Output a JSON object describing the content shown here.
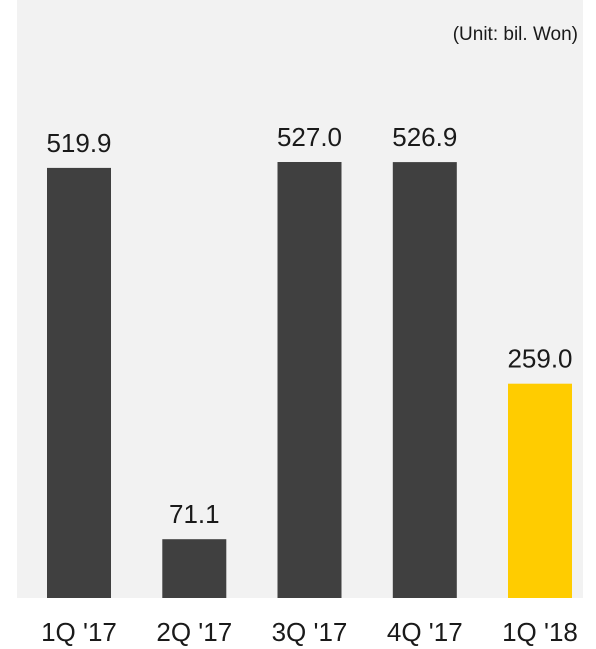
{
  "chart_data": {
    "type": "bar",
    "unit_note": "(Unit: bil. Won)",
    "categories": [
      "1Q '17",
      "2Q '17",
      "3Q '17",
      "4Q '17",
      "1Q '18"
    ],
    "values": [
      519.9,
      71.1,
      527.0,
      526.9,
      259.0
    ],
    "value_labels": [
      "519.9",
      "71.1",
      "527.0",
      "526.9",
      "259.0"
    ],
    "ylim": [
      0,
      527.0
    ],
    "grid": false,
    "legend": "none",
    "colors": {
      "background": "#f2f2f2",
      "default_bar": "#404040",
      "highlight_bar": "#ffcc00",
      "highlight_category": "1Q '18"
    }
  }
}
